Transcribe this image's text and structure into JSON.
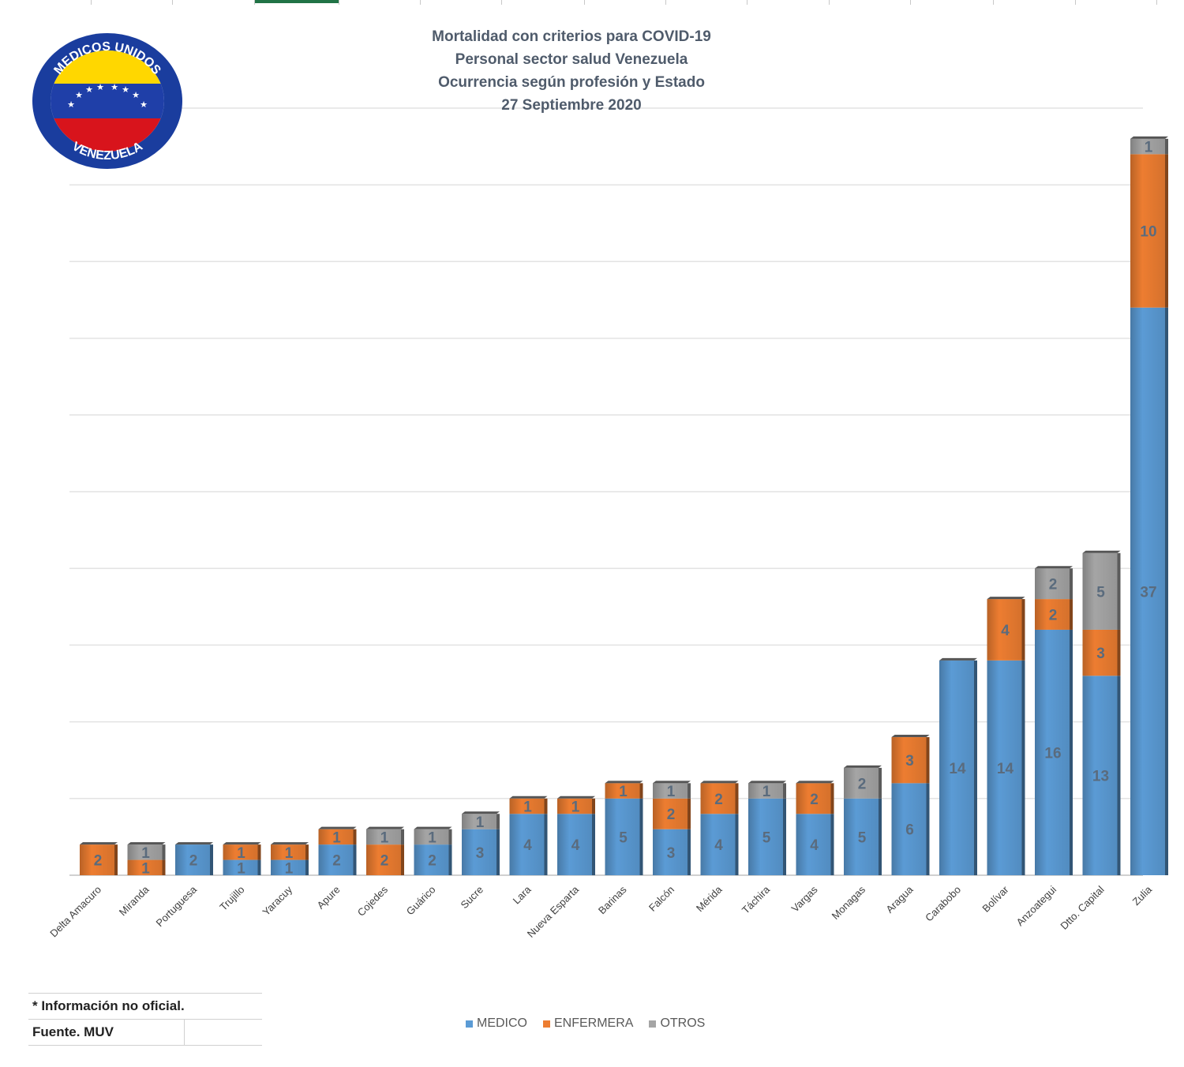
{
  "chart_data": {
    "type": "bar",
    "stacked": true,
    "title": [
      "Mortalidad con criterios para COVID-19",
      "Personal sector salud Venezuela",
      "Ocurrencia según profesión y Estado",
      "27 Septiembre 2020"
    ],
    "categories": [
      "Delta Amacuro",
      "Miranda",
      "Portuguesa",
      "Trujillo",
      "Yaracuy",
      "Apure",
      "Cojedes",
      "Guárico",
      "Sucre",
      "Lara",
      "Nueva Esparta",
      "Barinas",
      "Falcón",
      "Mérida",
      "Táchira",
      "Vargas",
      "Monagas",
      "Aragua",
      "Carabobo",
      "Bolívar",
      "Anzoategui",
      "Dtto. Capital",
      "Zulia"
    ],
    "series": [
      {
        "name": "MEDICO",
        "color": "#5b9bd5",
        "values": [
          0,
          0,
          2,
          1,
          1,
          2,
          0,
          2,
          3,
          4,
          4,
          5,
          3,
          4,
          5,
          4,
          5,
          6,
          14,
          14,
          16,
          13,
          37
        ]
      },
      {
        "name": "ENFERMERA",
        "color": "#ed7d31",
        "values": [
          2,
          1,
          0,
          1,
          1,
          1,
          2,
          0,
          0,
          1,
          1,
          1,
          2,
          2,
          0,
          2,
          0,
          3,
          0,
          4,
          2,
          3,
          10
        ]
      },
      {
        "name": "OTROS",
        "color": "#a5a5a5",
        "values": [
          0,
          1,
          0,
          0,
          0,
          0,
          1,
          1,
          1,
          0,
          0,
          0,
          1,
          0,
          1,
          0,
          2,
          0,
          0,
          0,
          2,
          5,
          1
        ]
      }
    ],
    "ylim": [
      0,
      50
    ],
    "grid": true,
    "legend_position": "bottom"
  },
  "logo": {
    "text_top": "MEDICOS UNIDOS",
    "text_bottom": "VENEZUELA"
  },
  "notes": {
    "line1": "* Información no oficial.",
    "line2": "Fuente. MUV"
  }
}
